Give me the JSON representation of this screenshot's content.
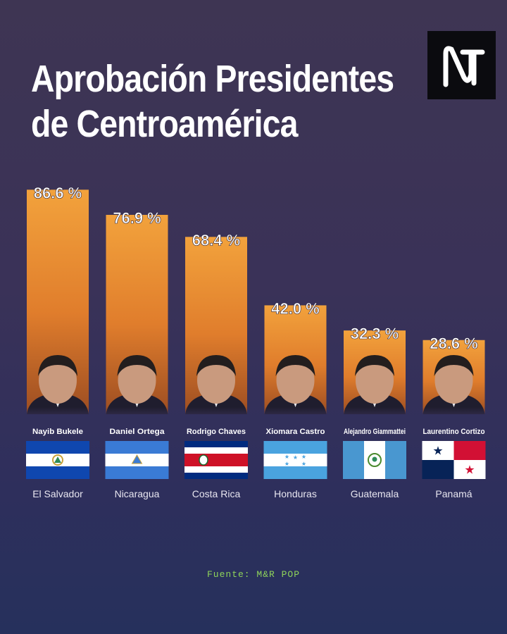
{
  "header": {
    "title_line1": "Aprobación Presidentes",
    "title_line2": "de Centroamérica"
  },
  "logo": {
    "icon": "nt-logo-icon"
  },
  "chart_data": {
    "type": "bar",
    "title": "Aprobación Presidentes de Centroamérica",
    "categories": [
      "El Salvador",
      "Nicaragua",
      "Costa Rica",
      "Honduras",
      "Guatemala",
      "Panamá"
    ],
    "presidents": [
      "Nayib Bukele",
      "Daniel Ortega",
      "Rodrigo Chaves",
      "Xiomara Castro",
      "Alejandro Giammattei",
      "Laurentino Cortizo"
    ],
    "values": [
      86.6,
      76.9,
      68.4,
      42.0,
      32.3,
      28.6
    ],
    "value_labels": [
      "86.6 %",
      "76.9 %",
      "68.4 %",
      "42.0 %",
      "32.3 %",
      "28.6 %"
    ],
    "unit": "%",
    "ylim": [
      0,
      100
    ],
    "grid": false,
    "legend": "none",
    "colors": {
      "bar_top": "#f2a23c",
      "bar_bottom": "#b45a22"
    }
  },
  "footer": {
    "source": "Fuente: M&R POP"
  }
}
